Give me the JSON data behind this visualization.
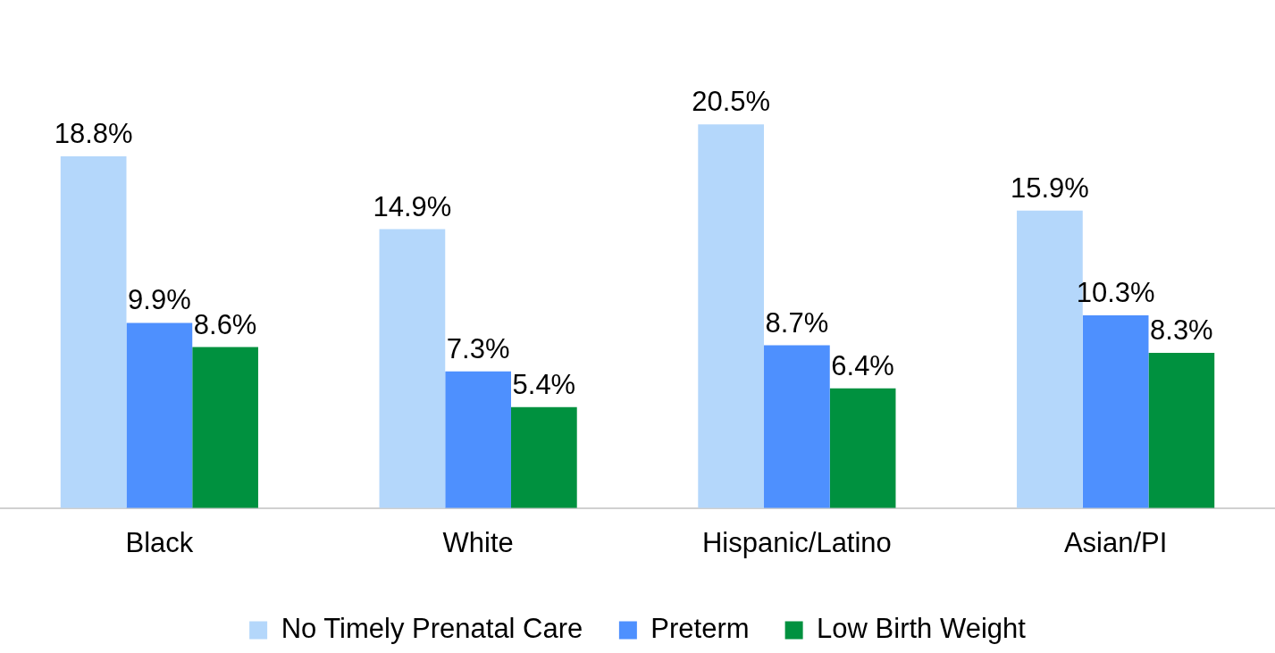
{
  "chart_data": {
    "type": "bar",
    "categories": [
      "Black",
      "White",
      "Hispanic/Latino",
      "Asian/PI"
    ],
    "series": [
      {
        "name": "No Timely Prenatal Care",
        "color": "#b4d7fb",
        "values": [
          18.8,
          14.9,
          20.5,
          15.9
        ],
        "value_labels": [
          "18.8%",
          "14.9%",
          "20.5%",
          "15.9%"
        ]
      },
      {
        "name": "Preterm",
        "color": "#4e90fe",
        "values": [
          9.9,
          7.3,
          8.7,
          10.3
        ],
        "value_labels": [
          "9.9%",
          "7.3%",
          "8.7%",
          "10.3%"
        ]
      },
      {
        "name": "Low Birth Weight",
        "color": "#00913f",
        "values": [
          8.6,
          5.4,
          6.4,
          8.3
        ],
        "value_labels": [
          "8.6%",
          "5.4%",
          "6.4%",
          "8.3%"
        ]
      }
    ],
    "legend": "bottom",
    "grid": false
  }
}
